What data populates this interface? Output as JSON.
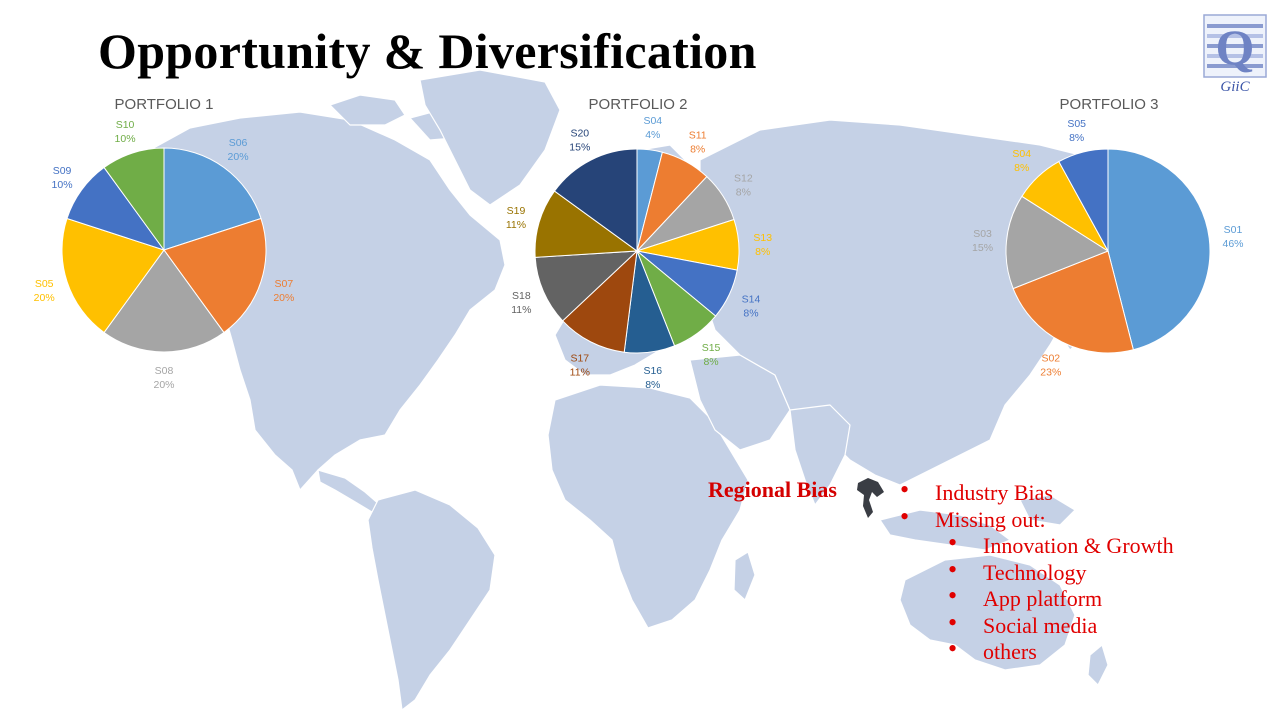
{
  "slide": {
    "title": "Opportunity & Diversification",
    "logo": {
      "letter": "Q",
      "caption": "GiiC",
      "icon": "q-logo-icon"
    },
    "regional_bias": "Regional Bias",
    "bullets": {
      "items": [
        {
          "label": "Industry Bias"
        },
        {
          "label": "Missing out:"
        }
      ],
      "sub_items": [
        {
          "label": "Innovation & Growth"
        },
        {
          "label": "Technology"
        },
        {
          "label": "App platform"
        },
        {
          "label": "Social media"
        },
        {
          "label": "others"
        }
      ]
    },
    "colors": {
      "bullet_red": "#e00000",
      "map_land": "#c5d1e6",
      "highlight_country": "#3a3d44"
    }
  },
  "chart_data": [
    {
      "type": "pie",
      "title": "PORTFOLIO 1",
      "slices": [
        {
          "label": "S06",
          "value": 20,
          "pct": "20%",
          "color": "#5b9bd5",
          "label_color": "#5b9bd5"
        },
        {
          "label": "S07",
          "value": 20,
          "pct": "20%",
          "color": "#ed7d31",
          "label_color": "#ed7d31"
        },
        {
          "label": "S08",
          "value": 20,
          "pct": "20%",
          "color": "#a5a5a5",
          "label_color": "#a5a5a5"
        },
        {
          "label": "S05",
          "value": 20,
          "pct": "20%",
          "color": "#ffc000",
          "label_color": "#ffc000"
        },
        {
          "label": "S09",
          "value": 10,
          "pct": "10%",
          "color": "#4472c4",
          "label_color": "#4472c4"
        },
        {
          "label": "S10",
          "value": 10,
          "pct": "10%",
          "color": "#70ad47",
          "label_color": "#70ad47"
        }
      ]
    },
    {
      "type": "pie",
      "title": "PORTFOLIO 2",
      "slices": [
        {
          "label": "S04",
          "value": 4,
          "pct": "4%",
          "color": "#5b9bd5",
          "label_color": "#5b9bd5"
        },
        {
          "label": "S11",
          "value": 8,
          "pct": "8%",
          "color": "#ed7d31",
          "label_color": "#ed7d31"
        },
        {
          "label": "S12",
          "value": 8,
          "pct": "8%",
          "color": "#a5a5a5",
          "label_color": "#a5a5a5"
        },
        {
          "label": "S13",
          "value": 8,
          "pct": "8%",
          "color": "#ffc000",
          "label_color": "#ffc000"
        },
        {
          "label": "S14",
          "value": 8,
          "pct": "8%",
          "color": "#4472c4",
          "label_color": "#4472c4"
        },
        {
          "label": "S15",
          "value": 8,
          "pct": "8%",
          "color": "#70ad47",
          "label_color": "#70ad47"
        },
        {
          "label": "S16",
          "value": 8,
          "pct": "8%",
          "color": "#255e91",
          "label_color": "#255e91"
        },
        {
          "label": "S17",
          "value": 11,
          "pct": "11%",
          "color": "#9e480e",
          "label_color": "#9e480e"
        },
        {
          "label": "S18",
          "value": 11,
          "pct": "11%",
          "color": "#636363",
          "label_color": "#636363"
        },
        {
          "label": "S19",
          "value": 11,
          "pct": "11%",
          "color": "#997300",
          "label_color": "#997300"
        },
        {
          "label": "S20",
          "value": 15,
          "pct": "15%",
          "color": "#264478",
          "label_color": "#264478"
        }
      ]
    },
    {
      "type": "pie",
      "title": "PORTFOLIO 3",
      "slices": [
        {
          "label": "S01",
          "value": 46,
          "pct": "46%",
          "color": "#5b9bd5",
          "label_color": "#5b9bd5"
        },
        {
          "label": "S02",
          "value": 23,
          "pct": "23%",
          "color": "#ed7d31",
          "label_color": "#ed7d31"
        },
        {
          "label": "S03",
          "value": 15,
          "pct": "15%",
          "color": "#a5a5a5",
          "label_color": "#a5a5a5"
        },
        {
          "label": "S04",
          "value": 8,
          "pct": "8%",
          "color": "#ffc000",
          "label_color": "#ffc000"
        },
        {
          "label": "S05",
          "value": 8,
          "pct": "8%",
          "color": "#4472c4",
          "label_color": "#4472c4"
        }
      ]
    }
  ]
}
